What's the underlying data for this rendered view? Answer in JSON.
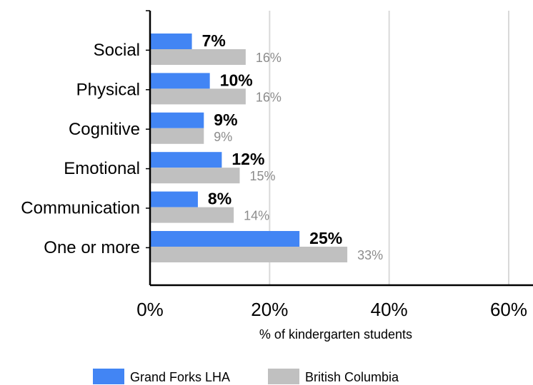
{
  "chart_data": {
    "type": "bar",
    "orientation": "horizontal",
    "categories": [
      "Social",
      "Physical",
      "Cognitive",
      "Emotional",
      "Communication",
      "One or more"
    ],
    "series": [
      {
        "name": "Grand Forks LHA",
        "values": [
          7,
          10,
          9,
          12,
          8,
          25
        ],
        "labels": [
          "7%",
          "10%",
          "9%",
          "12%",
          "8%",
          "25%"
        ],
        "color": "#4285f4"
      },
      {
        "name": "British Columbia",
        "values": [
          16,
          16,
          9,
          15,
          14,
          33
        ],
        "labels": [
          "16%",
          "16%",
          "9%",
          "15%",
          "14%",
          "33%"
        ],
        "color": "#c0c0c0"
      }
    ],
    "xlabel": "% of kindergarten students",
    "ylabel": "",
    "xlim": [
      0,
      60
    ],
    "xticks": [
      0,
      20,
      40,
      60
    ],
    "xtick_labels": [
      "0%",
      "20%",
      "40%",
      "60%"
    ],
    "grid": true,
    "legend_position": "bottom",
    "colors": {
      "grid": "#d9d9d9",
      "axis": "#000000",
      "primary_label": "#000000",
      "secondary_label": "#8c8c8c"
    }
  }
}
